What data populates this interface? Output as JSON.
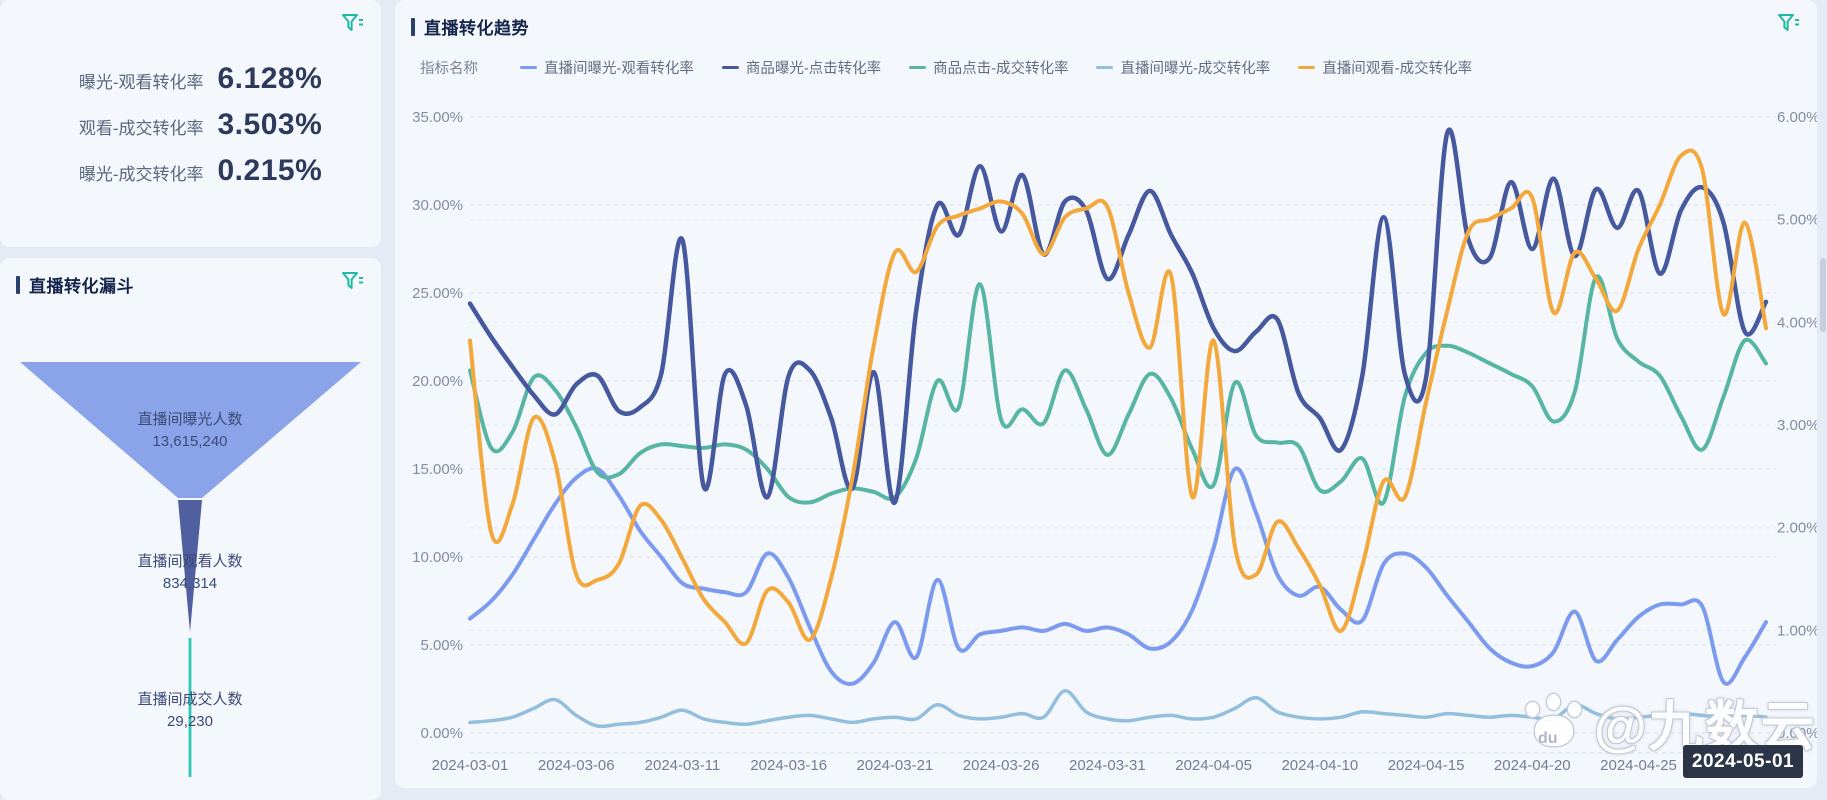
{
  "accent_teal": "#1fb9a5",
  "kpi_card": {
    "metrics": [
      {
        "label": "曝光-观看转化率",
        "value": "6.128%"
      },
      {
        "label": "观看-成交转化率",
        "value": "3.503%"
      },
      {
        "label": "曝光-成交转化率",
        "value": "0.215%"
      }
    ]
  },
  "funnel_card": {
    "title": "直播转化漏斗",
    "stages": [
      {
        "label": "直播间曝光人数",
        "value": "13,615,240",
        "color": "#8ba4e9"
      },
      {
        "label": "直播间观看人数",
        "value": "834,314",
        "color": "#505f9f"
      },
      {
        "label": "直播间成交人数",
        "value": "29,230",
        "color": "#2fc7b2"
      }
    ]
  },
  "trend_card": {
    "title": "直播转化趋势",
    "legend_label": "指标名称",
    "tooltip_date": "2024-05-01",
    "watermark": "@九数云",
    "watermark_paw_text": "du"
  },
  "chart_data": {
    "type": "line",
    "x_range": [
      "2024-03-01",
      "2024-05-01"
    ],
    "n_points": 62,
    "x_tick_labels": [
      "2024-03-01",
      "2024-03-06",
      "2024-03-11",
      "2024-03-16",
      "2024-03-21",
      "2024-03-26",
      "2024-03-31",
      "2024-04-05",
      "2024-04-10",
      "2024-04-15",
      "2024-04-20",
      "2024-04-25"
    ],
    "x_tick_step_days": 5,
    "grid": "dashed",
    "legend_position": "top",
    "y_axis_left": {
      "min": 0,
      "max": 35,
      "ticks": [
        "35.00%",
        "30.00%",
        "25.00%",
        "20.00%",
        "15.00%",
        "10.00%",
        "5.00%",
        "0.00%"
      ]
    },
    "y_axis_right": {
      "min": 0,
      "max": 6,
      "ticks": [
        "6.00%",
        "5.00%",
        "4.00%",
        "3.00%",
        "2.00%",
        "1.00%",
        "0.00%"
      ]
    },
    "series": [
      {
        "name": "直播间曝光-观看转化率",
        "color": "#7d9bee",
        "width": 4,
        "values": [
          6.5,
          7.5,
          9.0,
          11.0,
          13.0,
          14.5,
          15.0,
          13.5,
          11.5,
          10.0,
          8.5,
          8.2,
          8.0,
          8.0,
          10.2,
          8.8,
          6.0,
          3.5,
          2.8,
          4.0,
          6.3,
          4.3,
          8.7,
          4.8,
          5.6,
          5.8,
          6.0,
          5.8,
          6.2,
          5.8,
          6.0,
          5.6,
          4.8,
          5.2,
          7.0,
          10.5,
          15.0,
          12.5,
          9.0,
          7.8,
          8.3,
          7.0,
          6.4,
          9.6,
          10.2,
          9.4,
          7.8,
          6.3,
          4.8,
          4.0,
          3.8,
          4.6,
          6.9,
          4.1,
          5.3,
          6.6,
          7.3,
          7.3,
          7.2,
          2.9,
          4.3,
          6.3
        ]
      },
      {
        "name": "商品曝光-点击转化率",
        "color": "#46599f",
        "width": 4.5,
        "values": [
          24.4,
          22.5,
          20.8,
          19.2,
          18.1,
          19.8,
          20.3,
          18.3,
          18.5,
          20.4,
          28.0,
          14.0,
          20.4,
          18.6,
          13.4,
          20.3,
          20.6,
          17.9,
          13.9,
          20.5,
          13.1,
          24.0,
          30.0,
          28.3,
          32.2,
          28.5,
          31.7,
          27.2,
          30.2,
          29.7,
          25.8,
          28.3,
          30.8,
          28.3,
          26.1,
          23.0,
          21.7,
          22.8,
          23.5,
          19.3,
          17.9,
          16.1,
          20.3,
          29.3,
          20.4,
          20.2,
          34.1,
          28.0,
          27.0,
          31.3,
          27.5,
          31.5,
          27.1,
          30.9,
          28.7,
          30.8,
          26.1,
          29.7,
          31.0,
          29.0,
          22.8,
          24.5
        ]
      },
      {
        "name": "商品点击-成交转化率",
        "color": "#57b5a4",
        "width": 4,
        "values": [
          20.6,
          16.2,
          17.1,
          20.2,
          19.5,
          17.4,
          14.8,
          14.7,
          15.9,
          16.4,
          16.3,
          16.2,
          16.4,
          16.1,
          15.0,
          13.4,
          13.1,
          13.6,
          13.9,
          13.7,
          13.4,
          15.6,
          20.0,
          18.5,
          25.5,
          17.8,
          18.4,
          17.6,
          20.6,
          18.4,
          15.8,
          18.1,
          20.4,
          19.0,
          16.1,
          14.1,
          19.9,
          16.9,
          16.5,
          16.3,
          13.8,
          14.3,
          15.6,
          13.1,
          19.1,
          21.6,
          22.0,
          21.6,
          21.0,
          20.4,
          19.7,
          17.7,
          19.4,
          25.9,
          22.4,
          21.1,
          20.3,
          18.0,
          16.1,
          19.1,
          22.3,
          21.0
        ]
      },
      {
        "name": "直播间曝光-成交转化率",
        "color": "#93bfdd",
        "width": 3.5,
        "values": [
          0.6,
          0.7,
          0.9,
          1.4,
          1.9,
          1.0,
          0.4,
          0.5,
          0.6,
          0.9,
          1.3,
          0.8,
          0.6,
          0.5,
          0.7,
          0.9,
          1.0,
          0.8,
          0.6,
          0.8,
          0.9,
          0.8,
          1.6,
          1.0,
          0.8,
          0.9,
          1.1,
          0.9,
          2.4,
          1.2,
          0.8,
          0.7,
          0.9,
          1.0,
          0.8,
          0.9,
          1.4,
          2.0,
          1.2,
          0.9,
          0.8,
          0.9,
          1.2,
          1.1,
          1.0,
          0.9,
          1.1,
          1.0,
          0.9,
          1.0,
          0.9,
          0.8,
          1.6,
          1.1,
          0.8,
          0.9,
          1.0,
          1.1,
          1.0,
          0.9,
          1.0,
          0.9
        ]
      },
      {
        "name": "直播间观看-成交转化率",
        "color": "#f3a83c",
        "width": 4,
        "values": [
          22.3,
          11.4,
          13.0,
          17.9,
          15.4,
          9.0,
          8.7,
          9.6,
          12.9,
          12.1,
          9.9,
          7.6,
          6.3,
          5.1,
          8.1,
          7.4,
          5.3,
          8.8,
          14.5,
          22.0,
          27.3,
          26.2,
          28.8,
          29.4,
          29.8,
          30.2,
          29.5,
          27.2,
          29.3,
          29.8,
          29.9,
          25.0,
          21.9,
          26.0,
          13.4,
          22.3,
          10.6,
          9.0,
          12.0,
          10.5,
          8.4,
          5.8,
          9.5,
          14.3,
          13.4,
          18.8,
          24.0,
          28.5,
          29.2,
          29.8,
          30.4,
          23.9,
          27.3,
          25.8,
          24.0,
          27.5,
          30.0,
          32.8,
          32.0,
          23.8,
          29.0,
          23.0
        ]
      }
    ]
  }
}
